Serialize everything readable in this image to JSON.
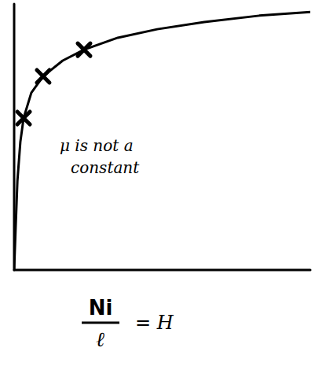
{
  "chart_data": {
    "type": "line",
    "annotation": [
      "μ is not a",
      "constant"
    ],
    "xlabel_numerator": "Ni",
    "xlabel_denominator": "ℓ",
    "xlabel": "= H",
    "xlim": [
      0,
      100
    ],
    "ylim": [
      0,
      100
    ],
    "tick_labels": false,
    "grid": false,
    "series": [
      {
        "type": "line",
        "color": "#000000",
        "line_style": "solid",
        "x": [
          0,
          0.5,
          1.1,
          2.1,
          3.2,
          5.8,
          9.8,
          16.4,
          23.6,
          35,
          48.3,
          64.2,
          82.8,
          100
        ],
        "values": [
          0,
          15.7,
          33.4,
          48.2,
          57.1,
          66.6,
          72.8,
          78.7,
          82.8,
          87.3,
          90.5,
          93.2,
          95.6,
          97.0
        ]
      },
      {
        "type": "scatter",
        "color": "#000000",
        "marker": "x",
        "x": [
          3.2,
          9.8,
          23.6
        ],
        "values": [
          57.1,
          72.8,
          82.8
        ]
      }
    ]
  }
}
